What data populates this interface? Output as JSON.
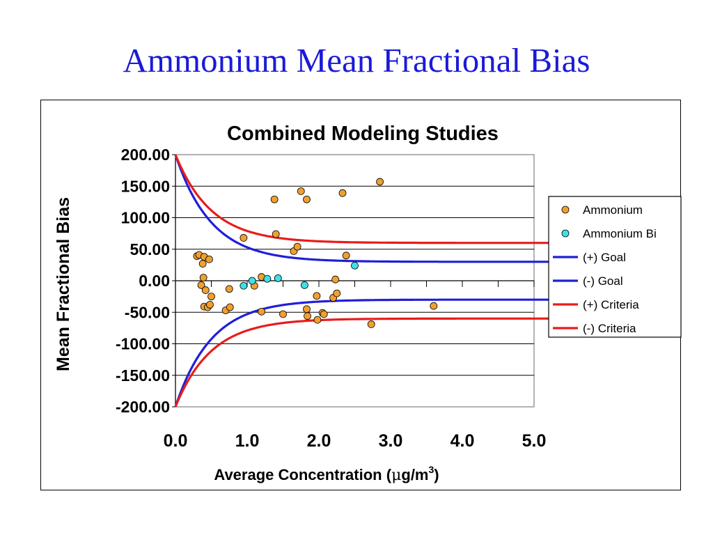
{
  "slide": {
    "title": "Ammonium Mean Fractional Bias"
  },
  "chart_data": {
    "type": "scatter",
    "title": "Combined Modeling Studies",
    "xlabel_main": "Average Concentration (",
    "xlabel_mu": "μ",
    "xlabel_unit": "g/m",
    "xlabel_sup": "3",
    "xlabel_close": ")",
    "ylabel": "Mean Fractional Bias",
    "xlim": [
      0,
      5
    ],
    "ylim": [
      -200,
      200
    ],
    "x_ticks": [
      "0.0",
      "1.0",
      "2.0",
      "3.0",
      "4.0",
      "5.0"
    ],
    "y_ticks": [
      "200.00",
      "150.00",
      "100.00",
      "50.00",
      "0.00",
      "-50.00",
      "-100.00",
      "-150.00",
      "-200.00"
    ],
    "horizontal_grid": true,
    "legend_position": "right",
    "legend": [
      {
        "label": "Ammonium",
        "kind": "marker",
        "color": "#f0a030"
      },
      {
        "label": "Ammonium Bi",
        "kind": "marker",
        "color": "#40e0e8"
      },
      {
        "label": "(+) Goal",
        "kind": "line",
        "color": "#1f1fd8"
      },
      {
        "label": "(-) Goal",
        "kind": "line",
        "color": "#1f1fd8"
      },
      {
        "label": "(+) Criteria",
        "kind": "line",
        "color": "#e81c1c"
      },
      {
        "label": "(-) Criteria",
        "kind": "line",
        "color": "#e81c1c"
      }
    ],
    "series": [
      {
        "name": "Ammonium",
        "color": "#f0a030",
        "points": [
          [
            0.3,
            39
          ],
          [
            0.33,
            41
          ],
          [
            0.36,
            -7
          ],
          [
            0.38,
            27
          ],
          [
            0.39,
            5
          ],
          [
            0.4,
            38
          ],
          [
            0.4,
            -41
          ],
          [
            0.42,
            -15
          ],
          [
            0.45,
            -42
          ],
          [
            0.47,
            34
          ],
          [
            0.48,
            -38
          ],
          [
            0.5,
            -25
          ],
          [
            0.7,
            -47
          ],
          [
            0.75,
            -13
          ],
          [
            0.76,
            -42
          ],
          [
            0.95,
            68
          ],
          [
            1.1,
            -8
          ],
          [
            1.2,
            6
          ],
          [
            1.2,
            -49
          ],
          [
            1.38,
            129
          ],
          [
            1.4,
            74
          ],
          [
            1.5,
            -53
          ],
          [
            1.65,
            47
          ],
          [
            1.7,
            54
          ],
          [
            1.75,
            142
          ],
          [
            1.83,
            129
          ],
          [
            1.83,
            -45
          ],
          [
            1.84,
            -56
          ],
          [
            1.97,
            -24
          ],
          [
            1.98,
            -62
          ],
          [
            2.05,
            -51
          ],
          [
            2.07,
            -53
          ],
          [
            2.2,
            -27
          ],
          [
            2.23,
            2
          ],
          [
            2.25,
            -20
          ],
          [
            2.33,
            139
          ],
          [
            2.38,
            40
          ],
          [
            2.73,
            -69
          ],
          [
            2.85,
            157
          ],
          [
            3.6,
            -40
          ]
        ]
      },
      {
        "name": "Ammonium Bi",
        "color": "#40e0e8",
        "points": [
          [
            0.95,
            -8
          ],
          [
            1.07,
            0
          ],
          [
            1.28,
            3
          ],
          [
            1.43,
            4
          ],
          [
            1.8,
            -7
          ],
          [
            2.5,
            24
          ]
        ]
      },
      {
        "name": "(+) Goal",
        "color": "#1f1fd8",
        "kind": "curve",
        "formula": "30 + 170*exp(-x/0.5)",
        "x_range": [
          0,
          5
        ]
      },
      {
        "name": "(-) Goal",
        "color": "#1f1fd8",
        "kind": "curve",
        "formula": "-(30 + 170*exp(-x/0.5))",
        "x_range": [
          0,
          5
        ]
      },
      {
        "name": "(+) Criteria",
        "color": "#e81c1c",
        "kind": "curve",
        "formula": "60 + 140*exp(-x/0.5)",
        "x_range": [
          0,
          5
        ]
      },
      {
        "name": "(-) Criteria",
        "color": "#e81c1c",
        "kind": "curve",
        "formula": "-(60 + 140*exp(-x/0.5))",
        "x_range": [
          0,
          5
        ]
      }
    ]
  }
}
